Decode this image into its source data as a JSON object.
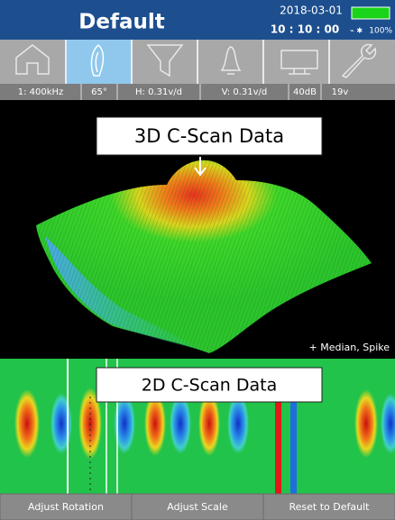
{
  "header": {
    "title": "Default",
    "date": "2018-03-01",
    "time": "10 : 10 : 00",
    "battery": "100%"
  },
  "status_bar": [
    "1: 400kHz",
    "65°",
    "H: 0.31v/d",
    "V: 0.31v/d",
    "40dB",
    "19v"
  ],
  "view_3d": {
    "label": "3D C-Scan Data",
    "filters": "+ Median, Spike"
  },
  "view_2d": {
    "label": "2D C-Scan Data"
  },
  "buttons": [
    "Adjust Rotation",
    "Adjust Scale",
    "Reset to Default"
  ]
}
